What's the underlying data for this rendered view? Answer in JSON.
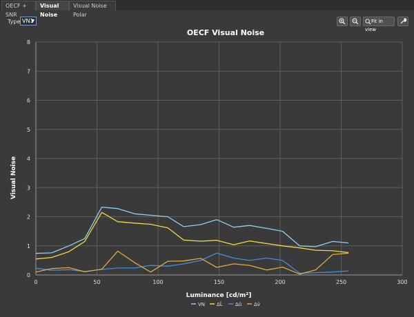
{
  "tabs": [
    "OECF + SNR",
    "Visual Noise",
    "Visual Noise Polar"
  ],
  "active_tab": 1,
  "type_label": "Type",
  "type_select": {
    "value": "VN1"
  },
  "toolbar": {
    "zoom_in": "zoom-in-icon",
    "zoom_out": "zoom-out-icon",
    "fit_label": "Fit in view",
    "fit_icon": "fit-view-icon",
    "settings_icon": "wrench-icon"
  },
  "colors": {
    "VN": "#8fd3ee",
    "L": "#f0dc3a",
    "u": "#3f8fe0",
    "v": "#e6a93c",
    "background": "#3a3a3a",
    "grid": "#5e5e5e"
  },
  "chart_data": {
    "type": "line",
    "title": "OECF Visual Noise",
    "xlabel": "Luminance [cd/m²]",
    "ylabel": "Visual Noise",
    "xlim": [
      0,
      300
    ],
    "ylim": [
      0,
      8
    ],
    "xticks": [
      "0",
      "50",
      "100",
      "150",
      "200",
      "250",
      "300"
    ],
    "yticks": [
      "0",
      "1",
      "2",
      "3",
      "4",
      "5",
      "6",
      "7",
      "8"
    ],
    "grid": true,
    "legend_position": "bottom",
    "series": [
      {
        "name": "VN",
        "color": "#8fd3ee",
        "x": [
          0,
          13,
          27,
          40,
          54,
          67,
          81,
          94,
          108,
          121,
          135,
          148,
          162,
          175,
          189,
          202,
          216,
          229,
          243,
          256
        ],
        "y": [
          0.74,
          0.76,
          1.0,
          1.25,
          2.33,
          2.28,
          2.1,
          2.05,
          2.0,
          1.66,
          1.73,
          1.9,
          1.64,
          1.7,
          1.6,
          1.5,
          1.0,
          0.97,
          1.15,
          1.1
        ]
      },
      {
        "name": "ΔL̃",
        "color": "#f0dc3a",
        "x": [
          0,
          13,
          27,
          40,
          54,
          67,
          81,
          94,
          108,
          121,
          135,
          148,
          162,
          175,
          189,
          202,
          216,
          229,
          243,
          256
        ],
        "y": [
          0.55,
          0.6,
          0.8,
          1.15,
          2.15,
          1.83,
          1.78,
          1.74,
          1.62,
          1.2,
          1.16,
          1.19,
          1.04,
          1.17,
          1.08,
          1.0,
          0.93,
          0.85,
          0.83,
          0.77
        ]
      },
      {
        "name": "Δũ",
        "color": "#3f8fe0",
        "x": [
          0,
          13,
          27,
          40,
          54,
          67,
          81,
          94,
          108,
          121,
          135,
          148,
          162,
          175,
          189,
          202,
          216,
          229,
          243,
          256
        ],
        "y": [
          0.23,
          0.16,
          0.18,
          0.12,
          0.19,
          0.24,
          0.24,
          0.33,
          0.3,
          0.38,
          0.5,
          0.75,
          0.58,
          0.5,
          0.58,
          0.5,
          0.06,
          0.08,
          0.1,
          0.14
        ]
      },
      {
        "name": "Δṽ",
        "color": "#e6a93c",
        "x": [
          0,
          13,
          27,
          40,
          54,
          67,
          81,
          94,
          108,
          121,
          135,
          148,
          162,
          175,
          189,
          202,
          216,
          229,
          243,
          256
        ],
        "y": [
          0.1,
          0.22,
          0.25,
          0.11,
          0.2,
          0.82,
          0.42,
          0.1,
          0.47,
          0.48,
          0.57,
          0.26,
          0.38,
          0.33,
          0.17,
          0.27,
          0.03,
          0.17,
          0.7,
          0.75
        ]
      }
    ]
  }
}
